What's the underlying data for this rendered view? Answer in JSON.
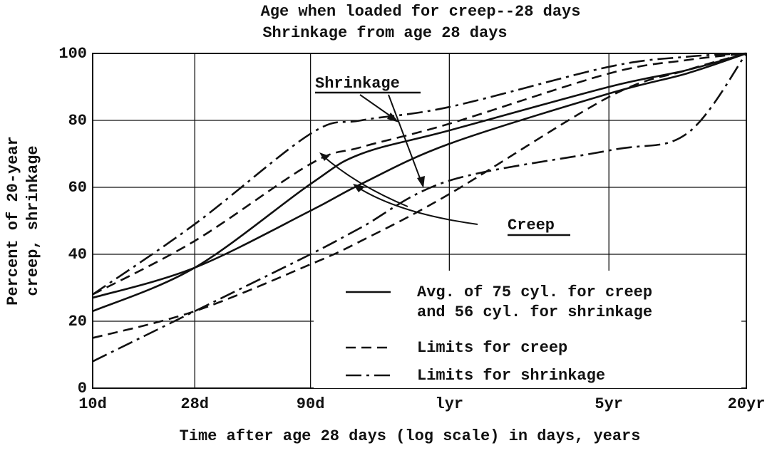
{
  "chart_data": {
    "type": "line",
    "title": [
      "Age when loaded for creep--28 days",
      "Shrinkage from age 28 days"
    ],
    "ylabel": [
      "Percent of 20-year",
      "creep, shrinkage"
    ],
    "xlabel": "Time after age 28 days (log scale) in days, years",
    "log_x": true,
    "grid": true,
    "color": "#111111",
    "x": [
      10,
      28,
      90,
      150,
      365,
      1825,
      4000,
      7300
    ],
    "xlim": [
      10,
      7300
    ],
    "xticks": [
      {
        "value": 10,
        "label": "10d"
      },
      {
        "value": 28,
        "label": "28d"
      },
      {
        "value": 90,
        "label": "90d"
      },
      {
        "value": 365,
        "label": "lyr"
      },
      {
        "value": 1825,
        "label": "5yr"
      },
      {
        "value": 7300,
        "label": "20yr"
      }
    ],
    "ylim": [
      0,
      100
    ],
    "yticks": [
      0,
      20,
      40,
      60,
      80,
      100
    ],
    "series": [
      {
        "name": [
          "Avg. of 75 cyl. for creep",
          "and 56 cyl. for shrinkage"
        ],
        "dash": "solid",
        "lines": [
          [
            23,
            36,
            61,
            70,
            77,
            90,
            95,
            100
          ],
          [
            27,
            36,
            53,
            61,
            73,
            88,
            94,
            100
          ]
        ]
      },
      {
        "name": [
          "Limits for creep"
        ],
        "dash": "dashed",
        "lines": [
          [
            28,
            44,
            67,
            72,
            79,
            94,
            98,
            100
          ],
          [
            15,
            23,
            37,
            44,
            58,
            87,
            95,
            100
          ]
        ]
      },
      {
        "name": [
          "Limits for shrinkage"
        ],
        "dash": "dashdot",
        "lines": [
          [
            28,
            49,
            76,
            80,
            84,
            96,
            99,
            100
          ],
          [
            8,
            23,
            40,
            48,
            62,
            71,
            76,
            100
          ]
        ]
      }
    ],
    "annotations": [
      "Shrinkage",
      "Creep"
    ]
  }
}
